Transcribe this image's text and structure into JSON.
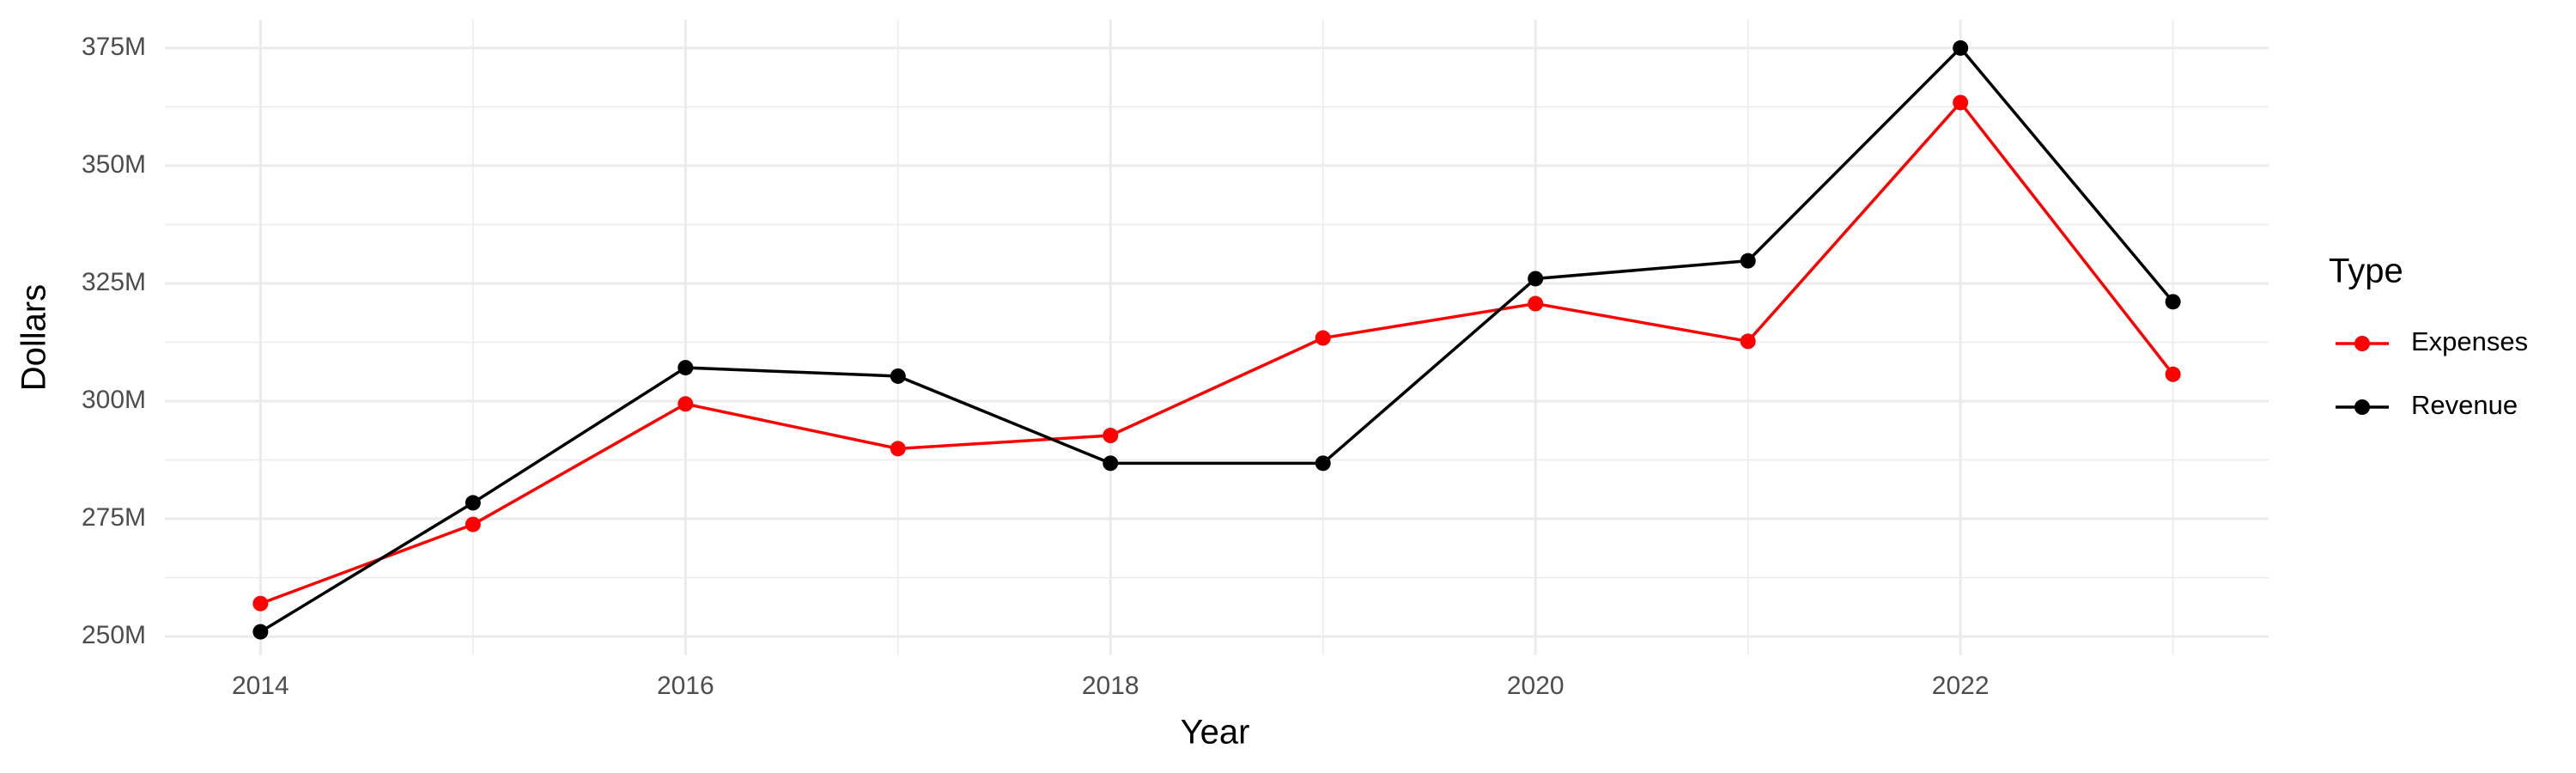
{
  "chart_data": {
    "type": "line",
    "x_label": "Year",
    "y_label": "Dollars",
    "legend_title": "Type",
    "legend_position": "right",
    "grid": true,
    "x": [
      2014,
      2015,
      2016,
      2017,
      2018,
      2019,
      2020,
      2021,
      2022,
      2023
    ],
    "series": [
      {
        "name": "Expenses",
        "color": "#ff0000",
        "values": [
          257000000,
          273800000,
          299400000,
          289900000,
          292700000,
          313400000,
          320700000,
          312700000,
          363400000,
          305700000
        ]
      },
      {
        "name": "Revenue",
        "color": "#000000",
        "values": [
          251000000,
          278400000,
          307100000,
          305300000,
          286800000,
          286800000,
          326000000,
          329800000,
          375000000,
          321100000
        ]
      }
    ],
    "xlim": [
      2013.55,
      2023.45
    ],
    "xticks": [
      2014,
      2016,
      2018,
      2020,
      2022
    ],
    "ylim": [
      246000000,
      381000000
    ],
    "yticks": [
      {
        "value": 250000000,
        "label": "250M"
      },
      {
        "value": 275000000,
        "label": "275M"
      },
      {
        "value": 300000000,
        "label": "300M"
      },
      {
        "value": 325000000,
        "label": "325M"
      },
      {
        "value": 350000000,
        "label": "350M"
      },
      {
        "value": 375000000,
        "label": "375M"
      }
    ]
  }
}
